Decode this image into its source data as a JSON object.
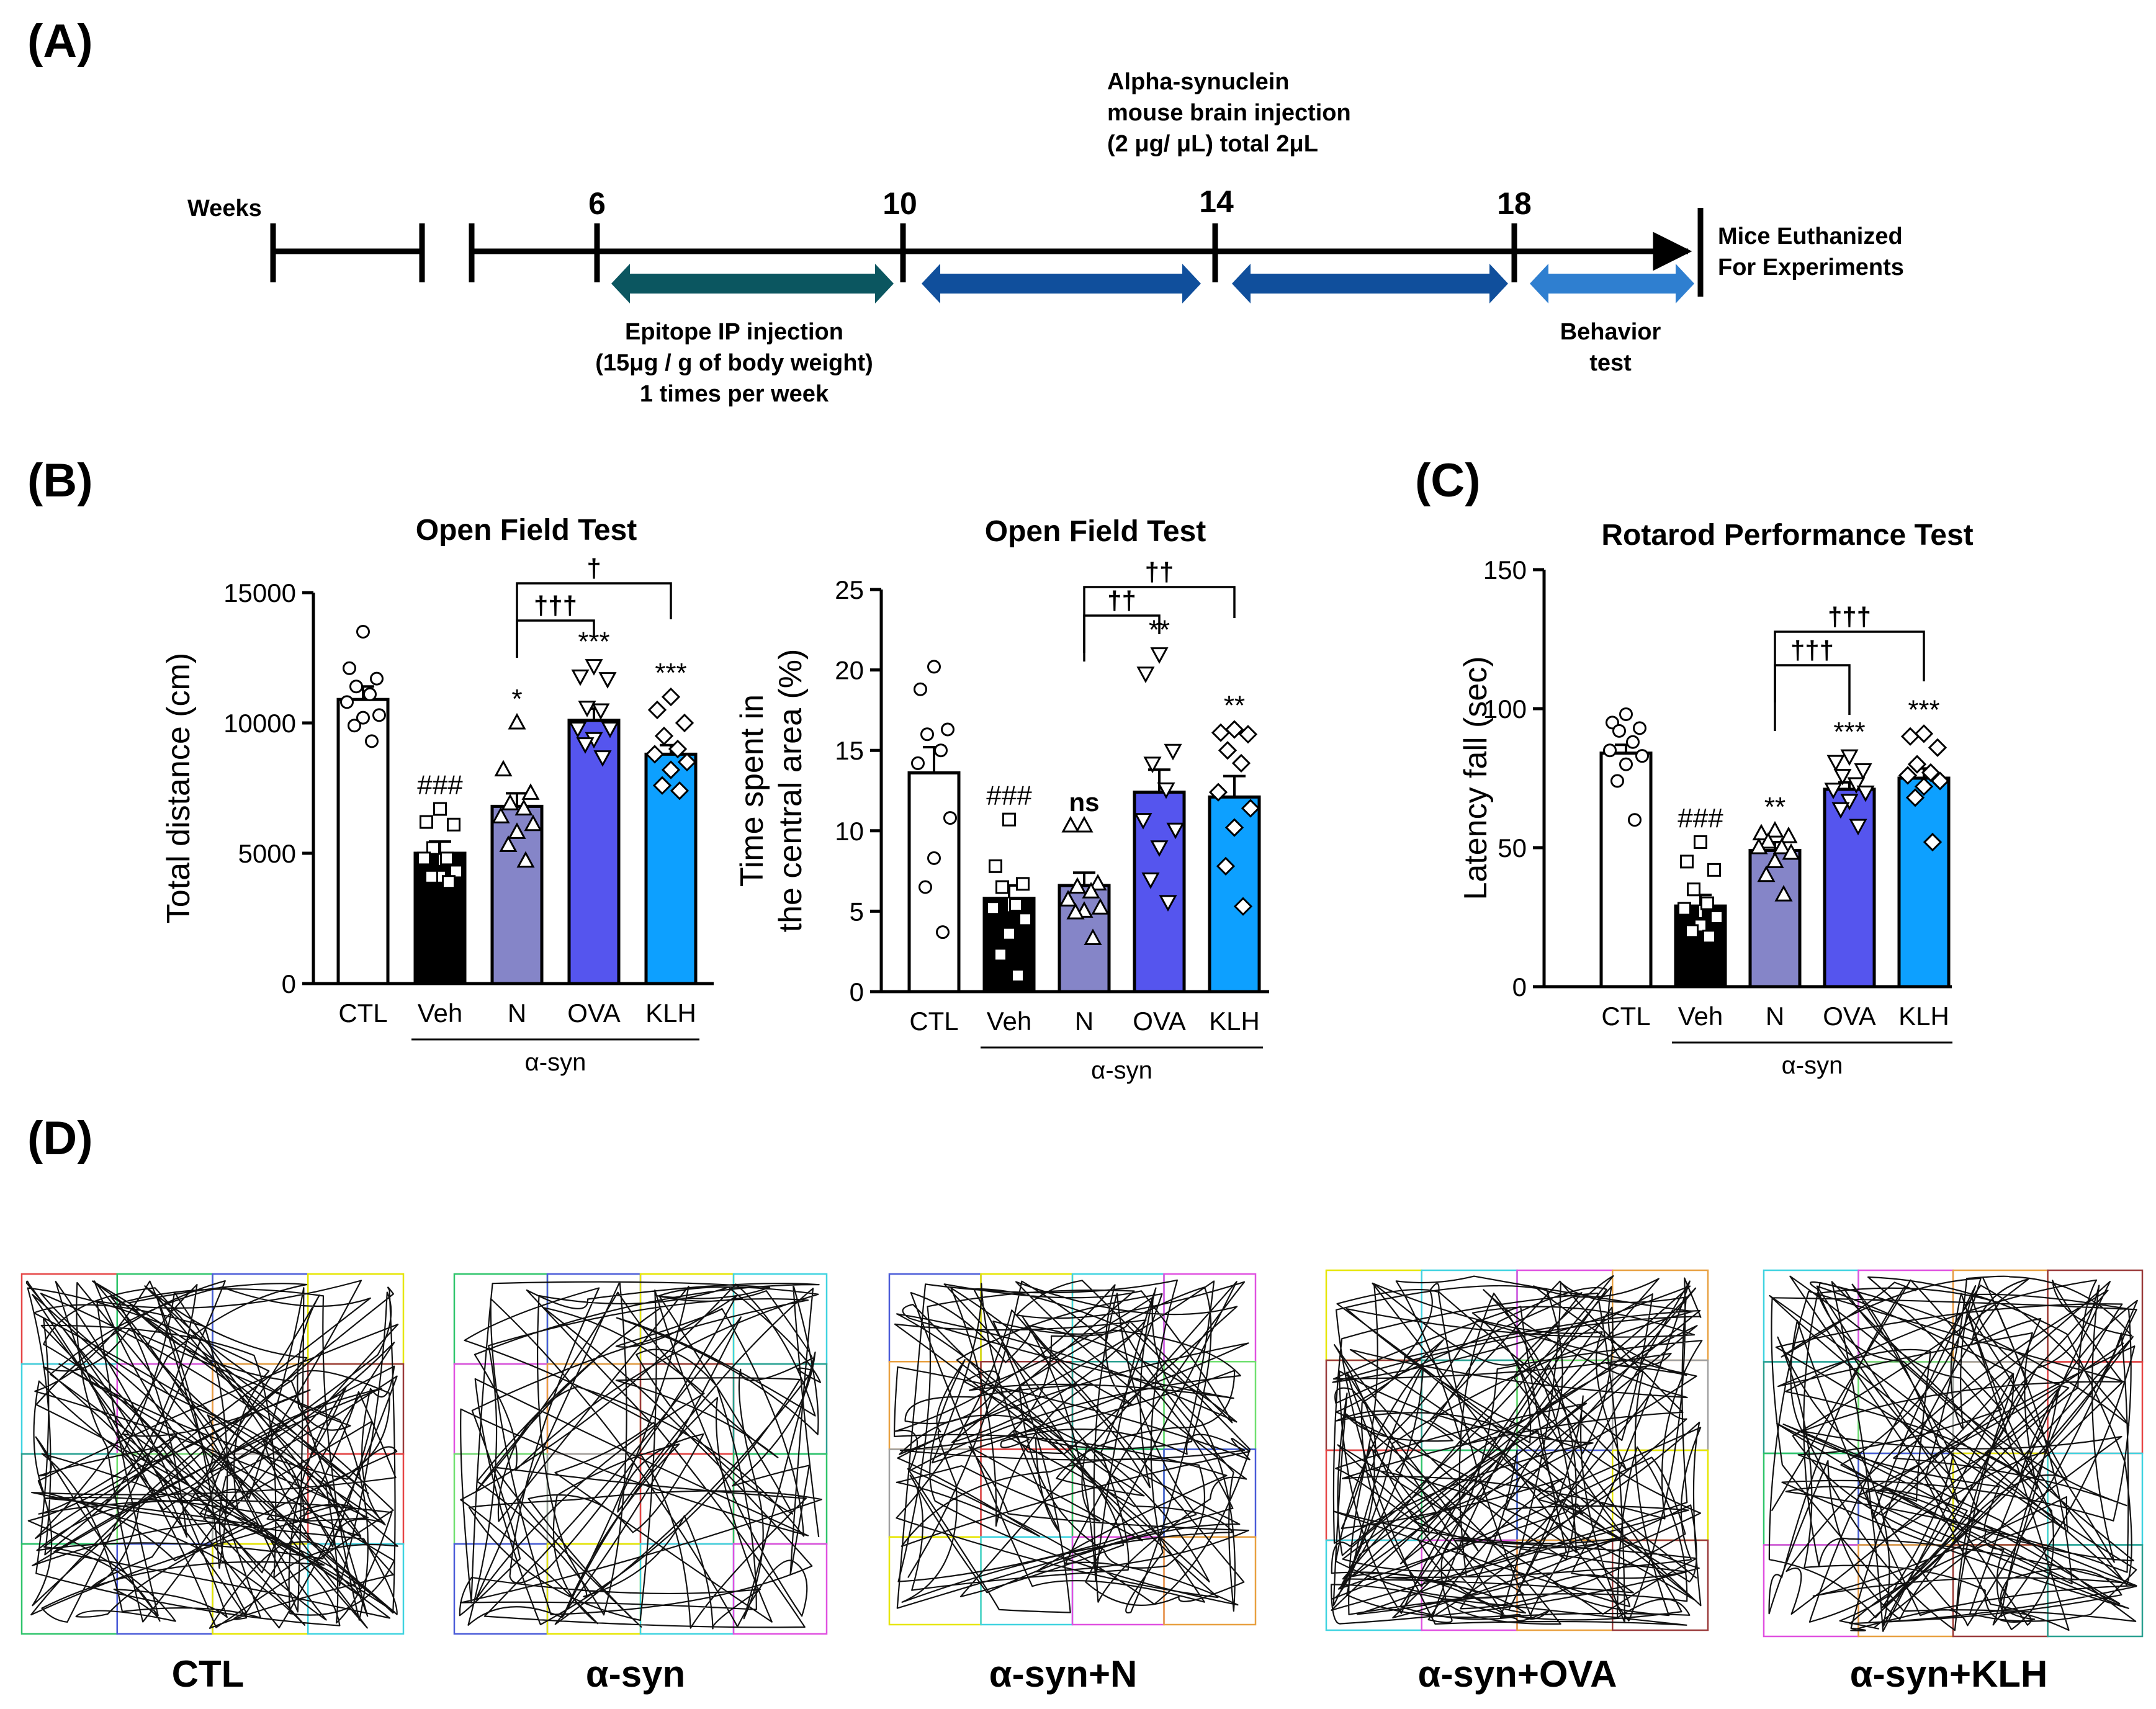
{
  "panels": {
    "A": "(A)",
    "B": "(B)",
    "C": "(C)",
    "D": "(D)"
  },
  "timeline": {
    "weeks_label": "Weeks",
    "week_marks": [
      "6",
      "10",
      "14",
      "18"
    ],
    "injection_note": [
      "Alpha-synuclein",
      "mouse brain injection",
      "(2 μg/ μL) total 2μL"
    ],
    "epitope_note": [
      "Epitope IP injection",
      "(15μg / g of body weight)",
      "1 times per week"
    ],
    "behavior_note": [
      "Behavior",
      "test"
    ],
    "end_note": [
      "Mice Euthanized",
      "For Experiments"
    ],
    "colors": {
      "epitope_arrow": "#0b5660",
      "injection_arrow": "#104f9c",
      "behavior_arrow": "#2f7fd0"
    }
  },
  "chart_data": [
    {
      "type": "bar",
      "title": "Open Field Test",
      "ylabel": "Total distance (cm)",
      "ylim": [
        0,
        15000
      ],
      "yticks": [
        "0",
        "5000",
        "10000",
        "15000"
      ],
      "categories": [
        "CTL",
        "Veh",
        "N",
        "OVA",
        "KLH"
      ],
      "group_label": "α-syn",
      "values": [
        10900,
        5000,
        6800,
        10100,
        8800
      ],
      "sem": [
        500,
        450,
        500,
        450,
        350
      ],
      "points": [
        [
          13500,
          12100,
          11700,
          11400,
          11100,
          10800,
          10300,
          10200,
          9900,
          9300
        ],
        [
          6700,
          6200,
          6100,
          5200,
          4800,
          4800,
          4300,
          4100,
          4100,
          3900
        ],
        [
          10000,
          8200,
          7300,
          6900,
          6700,
          6400,
          6100,
          5800,
          5300,
          4700
        ],
        [
          12200,
          11800,
          11700,
          10600,
          10500,
          9800,
          9800,
          9400,
          9200,
          8700
        ],
        [
          11000,
          10500,
          10000,
          9500,
          9000,
          8800,
          8500,
          8200,
          7600,
          7400
        ]
      ],
      "markers": [
        "circle",
        "square",
        "triangle-up",
        "triangle-down",
        "diamond"
      ],
      "fills": [
        "#ffffff",
        "#000000",
        "#8585c8",
        "#5555ee",
        "#0da0ff"
      ],
      "sig_above": [
        "",
        "###",
        "*",
        "***",
        "***"
      ],
      "comparisons": [
        {
          "from": 2,
          "to": 3,
          "label": "†††"
        },
        {
          "from": 2,
          "to": 4,
          "label": "†"
        }
      ]
    },
    {
      "type": "bar",
      "title": "Open Field Test",
      "ylabel": [
        "Time spent in",
        "the central area (%)"
      ],
      "ylim": [
        0,
        25
      ],
      "yticks": [
        "0",
        "5",
        "10",
        "15",
        "20",
        "25"
      ],
      "categories": [
        "CTL",
        "Veh",
        "N",
        "OVA",
        "KLH"
      ],
      "group_label": "α-syn",
      "values": [
        13.6,
        5.8,
        6.6,
        12.4,
        12.1
      ],
      "sem": [
        1.6,
        0.8,
        0.8,
        1.4,
        1.3
      ],
      "points": [
        [
          20.2,
          18.8,
          16.3,
          16.0,
          15.0,
          14.2,
          10.8,
          8.3,
          6.5,
          3.7
        ],
        [
          10.7,
          7.8,
          6.7,
          6.5,
          5.4,
          5.2,
          4.5,
          3.6,
          2.3,
          1.0
        ],
        [
          10.3,
          10.3,
          6.7,
          6.5,
          6.2,
          5.7,
          5.2,
          5.0,
          4.9,
          3.3
        ],
        [
          21.0,
          19.8,
          15.0,
          14.2,
          12.6,
          10.7,
          10.1,
          9.0,
          7.0,
          5.6
        ],
        [
          16.3,
          16.1,
          16.0,
          15.0,
          14.2,
          12.4,
          11.4,
          10.2,
          7.8,
          5.3
        ]
      ],
      "markers": [
        "circle",
        "square",
        "triangle-up",
        "triangle-down",
        "diamond"
      ],
      "fills": [
        "#ffffff",
        "#000000",
        "#8585c8",
        "#5555ee",
        "#0da0ff"
      ],
      "sig_above": [
        "",
        "###",
        "ns",
        "**",
        "**"
      ],
      "comparisons": [
        {
          "from": 2,
          "to": 3,
          "label": "††"
        },
        {
          "from": 2,
          "to": 4,
          "label": "††"
        }
      ]
    },
    {
      "type": "bar",
      "title": "Rotarod Performance Test",
      "ylabel": "Latency fall (sec)",
      "ylim": [
        0,
        150
      ],
      "yticks": [
        "0",
        "50",
        "100",
        "150"
      ],
      "categories": [
        "CTL",
        "Veh",
        "N",
        "OVA",
        "KLH"
      ],
      "group_label": "α-syn",
      "values": [
        84,
        29,
        49,
        71,
        75
      ],
      "sem": [
        3,
        4,
        3,
        2.5,
        3.5
      ],
      "points": [
        [
          98,
          95,
          93,
          92,
          88,
          85,
          83,
          80,
          74,
          60
        ],
        [
          52,
          45,
          42,
          35,
          30,
          28,
          25,
          22,
          20,
          18
        ],
        [
          56,
          55,
          54,
          52,
          50,
          50,
          48,
          45,
          40,
          33
        ],
        [
          83,
          81,
          78,
          76,
          73,
          71,
          70,
          67,
          64,
          58
        ],
        [
          91,
          90,
          86,
          80,
          77,
          76,
          74,
          72,
          68,
          52
        ]
      ],
      "markers": [
        "circle",
        "square",
        "triangle-up",
        "triangle-down",
        "diamond"
      ],
      "fills": [
        "#ffffff",
        "#000000",
        "#8585c8",
        "#5555ee",
        "#0da0ff"
      ],
      "sig_above": [
        "",
        "###",
        "**",
        "***",
        "***"
      ],
      "comparisons": [
        {
          "from": 2,
          "to": 3,
          "label": "†††"
        },
        {
          "from": 2,
          "to": 4,
          "label": "†††"
        }
      ]
    }
  ],
  "tracks": {
    "labels": [
      "CTL",
      "α-syn",
      "α-syn+N",
      "α-syn+OVA",
      "α-syn+KLH"
    ],
    "grid_colors": [
      "#e64545",
      "#2ec46a",
      "#4a5bd8",
      "#e6e600",
      "#3fd3e0",
      "#e050e0",
      "#e8a040",
      "#9a3a3a",
      "#2aa090",
      "#70e070",
      "#a0a0a0"
    ],
    "track_density": [
      170,
      110,
      140,
      190,
      160
    ]
  }
}
